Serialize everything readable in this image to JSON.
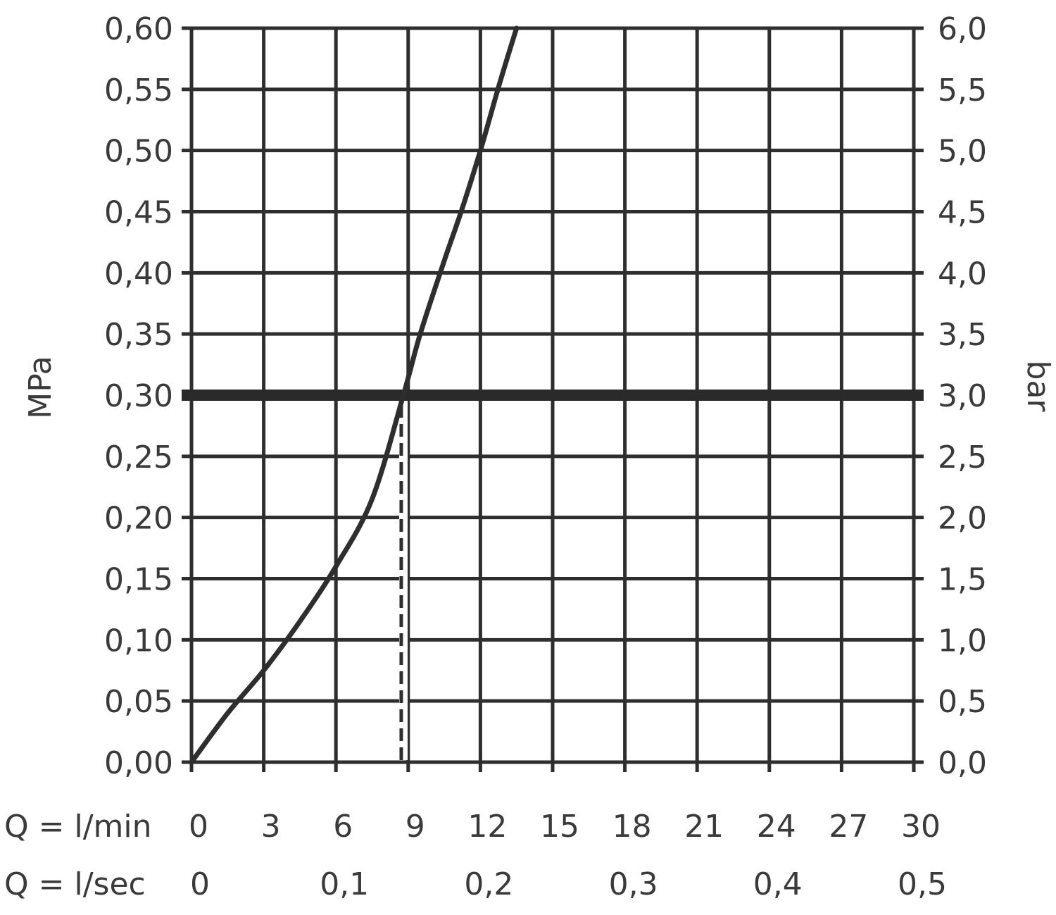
{
  "chart_data": {
    "type": "line",
    "title": "",
    "y_left": {
      "label": "MPa",
      "range": [
        0,
        0.6
      ],
      "ticks": [
        "0,00",
        "0,05",
        "0,10",
        "0,15",
        "0,20",
        "0,25",
        "0,30",
        "0,35",
        "0,40",
        "0,45",
        "0,50",
        "0,55",
        "0,60"
      ]
    },
    "y_right": {
      "label": "bar",
      "range": [
        0,
        6
      ],
      "ticks": [
        "0,0",
        "0,5",
        "1,0",
        "1,5",
        "2,0",
        "2,5",
        "3,0",
        "3,5",
        "4,0",
        "4,5",
        "5,0",
        "5,5",
        "6,0"
      ]
    },
    "x_lmin": {
      "label": "Q = l/min",
      "range": [
        0,
        30
      ],
      "ticks": [
        {
          "value": 0,
          "text": "0"
        },
        {
          "value": 3,
          "text": "3"
        },
        {
          "value": 6,
          "text": "6"
        },
        {
          "value": 9,
          "text": "9"
        },
        {
          "value": 12,
          "text": "12"
        },
        {
          "value": 15,
          "text": "15"
        },
        {
          "value": 18,
          "text": "18"
        },
        {
          "value": 21,
          "text": "21"
        },
        {
          "value": 24,
          "text": "24"
        },
        {
          "value": 27,
          "text": "27"
        },
        {
          "value": 30,
          "text": "30"
        }
      ]
    },
    "x_lsec": {
      "label": "Q = l/sec",
      "ticks": [
        {
          "value": 0,
          "text": "0"
        },
        {
          "value": 0.1,
          "text": "0,1"
        },
        {
          "value": 0.2,
          "text": "0,2"
        },
        {
          "value": 0.3,
          "text": "0,3"
        },
        {
          "value": 0.4,
          "text": "0,4"
        },
        {
          "value": 0.5,
          "text": "0,5"
        }
      ]
    },
    "grid": true,
    "series": [
      {
        "x": [
          0,
          1.5,
          3,
          4.5,
          6,
          7.5,
          8.8,
          9.5,
          10.5,
          11.2,
          12,
          12.8,
          13.5
        ],
        "y": [
          0,
          0.04,
          0.075,
          0.115,
          0.16,
          0.215,
          0.3,
          0.35,
          0.41,
          0.45,
          0.5,
          0.555,
          0.6
        ]
      }
    ],
    "reference_line": {
      "y": 0.3
    },
    "drop_line": {
      "x": 8.8,
      "y_from": 0,
      "y_to": 0.3
    }
  }
}
